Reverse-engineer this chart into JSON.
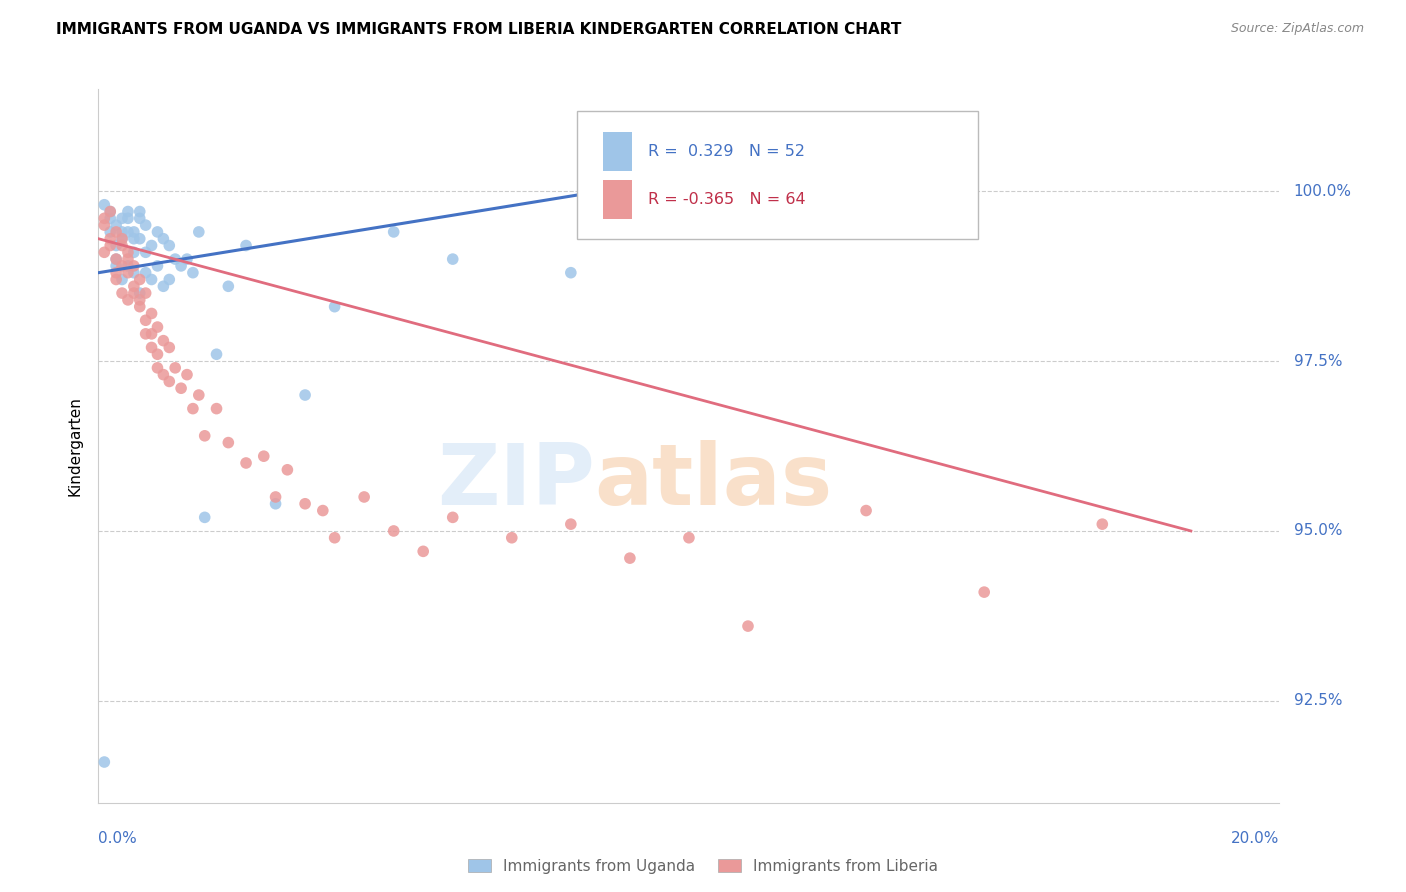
{
  "title": "IMMIGRANTS FROM UGANDA VS IMMIGRANTS FROM LIBERIA KINDERGARTEN CORRELATION CHART",
  "source": "Source: ZipAtlas.com",
  "ylabel": "Kindergarten",
  "yticks": [
    92.5,
    95.0,
    97.5,
    100.0
  ],
  "ytick_labels": [
    "92.5%",
    "95.0%",
    "97.5%",
    "100.0%"
  ],
  "xlim": [
    0.0,
    0.2
  ],
  "ylim": [
    91.0,
    101.5
  ],
  "color_uganda": "#9fc5e8",
  "color_liberia": "#ea9999",
  "line_color_uganda": "#4472c4",
  "line_color_liberia": "#e06c7e",
  "uganda_x": [
    0.001,
    0.002,
    0.002,
    0.003,
    0.003,
    0.003,
    0.004,
    0.004,
    0.004,
    0.005,
    0.005,
    0.005,
    0.006,
    0.006,
    0.006,
    0.007,
    0.007,
    0.007,
    0.008,
    0.008,
    0.009,
    0.009,
    0.01,
    0.01,
    0.011,
    0.011,
    0.012,
    0.012,
    0.013,
    0.014,
    0.015,
    0.016,
    0.017,
    0.018,
    0.02,
    0.022,
    0.025,
    0.03,
    0.035,
    0.04,
    0.05,
    0.06,
    0.08,
    0.1,
    0.001,
    0.002,
    0.003,
    0.004,
    0.005,
    0.006,
    0.007,
    0.008
  ],
  "uganda_y": [
    91.6,
    99.7,
    99.4,
    99.5,
    99.2,
    98.9,
    99.6,
    99.3,
    98.7,
    99.7,
    99.4,
    98.9,
    99.4,
    99.1,
    98.8,
    99.6,
    99.3,
    98.5,
    99.5,
    98.8,
    99.2,
    98.7,
    99.4,
    98.9,
    99.3,
    98.6,
    99.2,
    98.7,
    99.0,
    98.9,
    99.0,
    98.8,
    99.4,
    95.2,
    97.6,
    98.6,
    99.2,
    95.4,
    97.0,
    98.3,
    99.4,
    99.0,
    98.8,
    99.7,
    99.8,
    99.6,
    99.0,
    99.4,
    99.6,
    99.3,
    99.7,
    99.1
  ],
  "liberia_x": [
    0.001,
    0.001,
    0.002,
    0.002,
    0.003,
    0.003,
    0.003,
    0.004,
    0.004,
    0.004,
    0.005,
    0.005,
    0.005,
    0.006,
    0.006,
    0.007,
    0.007,
    0.008,
    0.008,
    0.009,
    0.009,
    0.01,
    0.01,
    0.011,
    0.011,
    0.012,
    0.012,
    0.013,
    0.014,
    0.015,
    0.016,
    0.017,
    0.018,
    0.02,
    0.022,
    0.025,
    0.028,
    0.03,
    0.032,
    0.035,
    0.038,
    0.04,
    0.045,
    0.05,
    0.055,
    0.06,
    0.07,
    0.08,
    0.09,
    0.1,
    0.11,
    0.13,
    0.15,
    0.17,
    0.001,
    0.002,
    0.003,
    0.004,
    0.005,
    0.006,
    0.007,
    0.008,
    0.009,
    0.01
  ],
  "liberia_y": [
    99.5,
    99.1,
    99.7,
    99.2,
    99.4,
    99.0,
    98.7,
    99.3,
    98.9,
    98.5,
    99.1,
    98.8,
    98.4,
    98.9,
    98.5,
    98.7,
    98.3,
    98.5,
    97.9,
    98.2,
    97.7,
    98.0,
    97.4,
    97.8,
    97.3,
    97.7,
    97.2,
    97.4,
    97.1,
    97.3,
    96.8,
    97.0,
    96.4,
    96.8,
    96.3,
    96.0,
    96.1,
    95.5,
    95.9,
    95.4,
    95.3,
    94.9,
    95.5,
    95.0,
    94.7,
    95.2,
    94.9,
    95.1,
    94.6,
    94.9,
    93.6,
    95.3,
    94.1,
    95.1,
    99.6,
    99.3,
    98.8,
    99.2,
    99.0,
    98.6,
    98.4,
    98.1,
    97.9,
    97.6
  ]
}
